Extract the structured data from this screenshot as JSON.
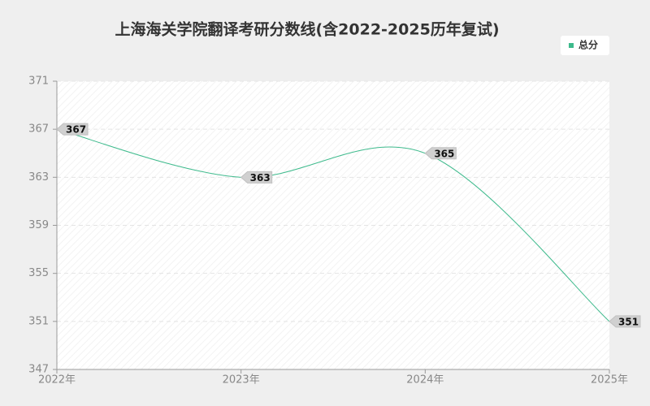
{
  "chart_data": {
    "type": "line",
    "title": "上海海关学院翻译考研分数线(含2022-2025历年复试)",
    "categories": [
      "2022年",
      "2023年",
      "2024年",
      "2025年"
    ],
    "series": [
      {
        "name": "总分",
        "color": "#3dba8c",
        "values": [
          367,
          363,
          365,
          351
        ]
      }
    ],
    "ylim": [
      347,
      371
    ],
    "yticks": [
      347,
      351,
      355,
      359,
      363,
      367,
      371
    ],
    "grid": true,
    "legend": "top-right"
  }
}
